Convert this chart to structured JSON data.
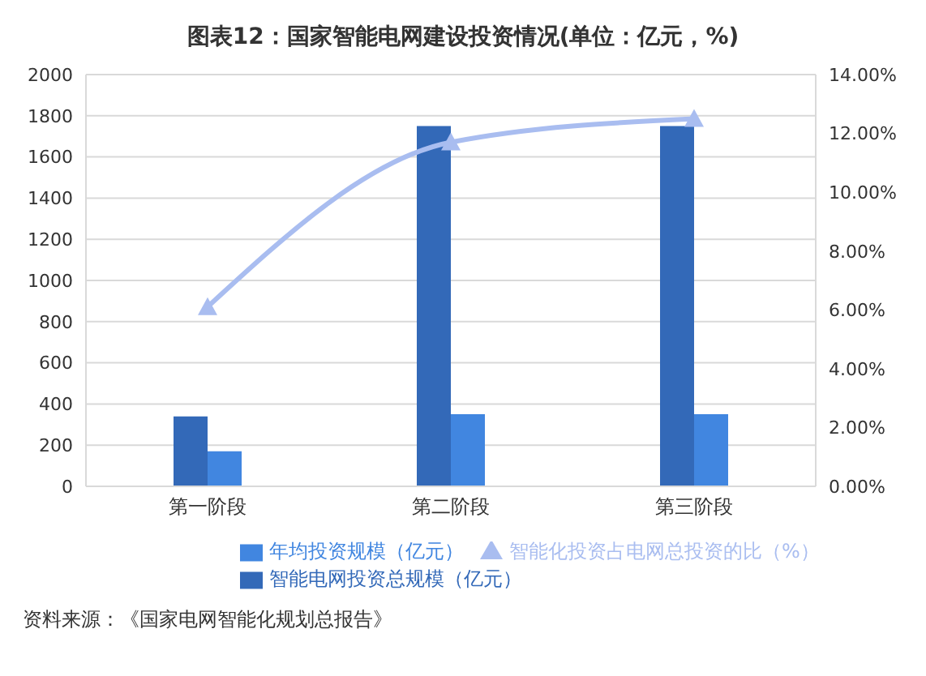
{
  "chart_data": {
    "type": "bar",
    "title": "图表12：国家智能电网建设投资情况(单位：亿元，%)",
    "categories": [
      "第一阶段",
      "第二阶段",
      "第三阶段"
    ],
    "series": [
      {
        "name": "智能电网投资总规模（亿元）",
        "color": "#3369b8",
        "values": [
          340,
          1750,
          1750
        ]
      },
      {
        "name": "年均投资规模（亿元）",
        "color": "#4186e0",
        "values": [
          170,
          350,
          350
        ]
      },
      {
        "name": "智能化投资占电网总投资的比（%）",
        "type": "line",
        "axis": "y2",
        "color": "#a9bdf0",
        "marker": "triangle",
        "values": [
          6.1,
          11.7,
          12.5
        ]
      }
    ],
    "ylim": [
      0,
      2000
    ],
    "yticks": [
      0,
      200,
      400,
      600,
      800,
      1000,
      1200,
      1400,
      1600,
      1800,
      2000
    ],
    "y2lim": [
      0,
      14
    ],
    "y2ticks": [
      {
        "value": 0,
        "label": "0.00%"
      },
      {
        "value": 2,
        "label": "2.00%"
      },
      {
        "value": 4,
        "label": "4.00%"
      },
      {
        "value": 6,
        "label": "6.00%"
      },
      {
        "value": 8,
        "label": "8.00%"
      },
      {
        "value": 10,
        "label": "10.00%"
      },
      {
        "value": 12,
        "label": "12.00%"
      },
      {
        "value": 14,
        "label": "14.00%"
      }
    ],
    "grid": "y",
    "legend": "bottom",
    "annotations": [
      "资料来源：《国家电网智能化规划总报告》"
    ]
  }
}
